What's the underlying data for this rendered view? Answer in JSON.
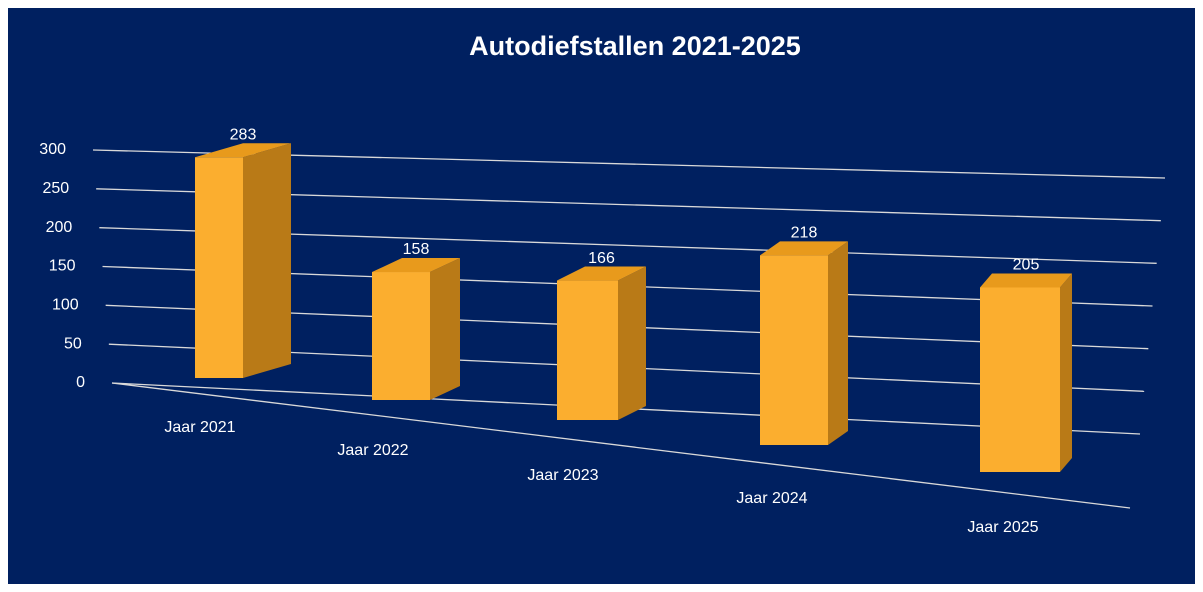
{
  "chart_data": {
    "type": "bar3d",
    "title": "Autodiefstallen 2021-2025",
    "categories": [
      "Jaar 2021",
      "Jaar 2022",
      "Jaar 2023",
      "Jaar 2024",
      "Jaar 2025"
    ],
    "values": [
      283,
      158,
      166,
      218,
      205
    ],
    "color": "#fbae2f",
    "side_color": "#b97a17",
    "top_color": "#e89a1c",
    "background": "#002060",
    "ylim": [
      0,
      300
    ],
    "yticks": [
      0,
      50,
      100,
      150,
      200,
      250,
      300
    ],
    "grid": true
  }
}
